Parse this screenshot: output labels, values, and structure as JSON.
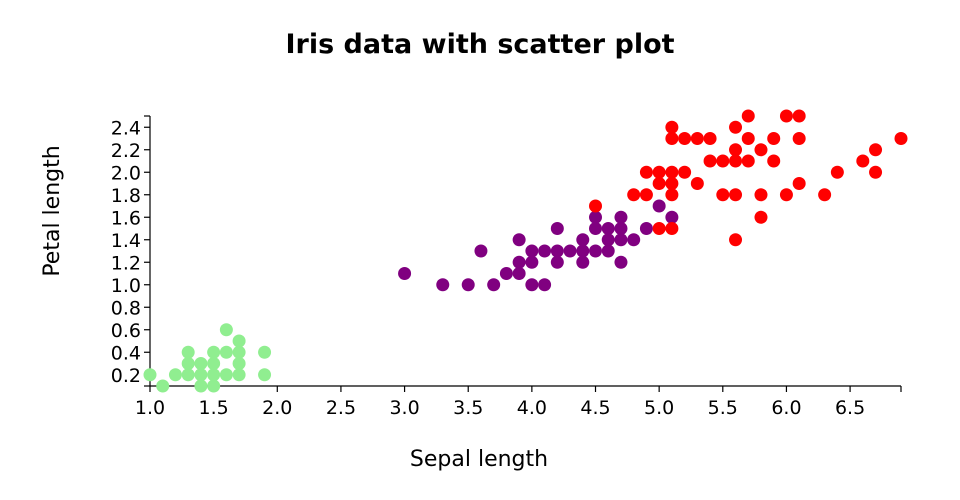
{
  "chart_data": {
    "type": "scatter",
    "title": "Iris data with scatter plot",
    "xlabel": "Sepal length",
    "ylabel": "Petal length",
    "xlim": [
      1.0,
      6.9
    ],
    "ylim": [
      0.1,
      2.5
    ],
    "x_ticks": [
      "1.0",
      "1.5",
      "2.0",
      "2.5",
      "3.0",
      "3.5",
      "4.0",
      "4.5",
      "5.0",
      "5.5",
      "6.0",
      "6.5"
    ],
    "y_ticks": [
      "0.2",
      "0.4",
      "0.6",
      "0.8",
      "1.0",
      "1.2",
      "1.4",
      "1.6",
      "1.8",
      "2.0",
      "2.2",
      "2.4"
    ],
    "grid": false,
    "legend": "none",
    "series": [
      {
        "color": "#90ee90",
        "points": [
          [
            1.0,
            0.2
          ],
          [
            1.1,
            0.1
          ],
          [
            1.2,
            0.2
          ],
          [
            1.3,
            0.2
          ],
          [
            1.3,
            0.3
          ],
          [
            1.3,
            0.4
          ],
          [
            1.4,
            0.1
          ],
          [
            1.4,
            0.2
          ],
          [
            1.4,
            0.3
          ],
          [
            1.5,
            0.1
          ],
          [
            1.5,
            0.2
          ],
          [
            1.5,
            0.3
          ],
          [
            1.5,
            0.4
          ],
          [
            1.6,
            0.2
          ],
          [
            1.6,
            0.4
          ],
          [
            1.6,
            0.6
          ],
          [
            1.7,
            0.2
          ],
          [
            1.7,
            0.3
          ],
          [
            1.7,
            0.4
          ],
          [
            1.7,
            0.5
          ],
          [
            1.9,
            0.2
          ],
          [
            1.9,
            0.4
          ]
        ]
      },
      {
        "color": "#800080",
        "points": [
          [
            3.0,
            1.1
          ],
          [
            3.3,
            1.0
          ],
          [
            3.5,
            1.0
          ],
          [
            3.6,
            1.3
          ],
          [
            3.7,
            1.0
          ],
          [
            3.8,
            1.1
          ],
          [
            3.9,
            1.1
          ],
          [
            3.9,
            1.2
          ],
          [
            3.9,
            1.4
          ],
          [
            4.0,
            1.0
          ],
          [
            4.0,
            1.2
          ],
          [
            4.0,
            1.3
          ],
          [
            4.1,
            1.0
          ],
          [
            4.1,
            1.3
          ],
          [
            4.2,
            1.2
          ],
          [
            4.2,
            1.3
          ],
          [
            4.2,
            1.5
          ],
          [
            4.3,
            1.3
          ],
          [
            4.4,
            1.2
          ],
          [
            4.4,
            1.3
          ],
          [
            4.4,
            1.4
          ],
          [
            4.5,
            1.3
          ],
          [
            4.5,
            1.5
          ],
          [
            4.5,
            1.6
          ],
          [
            4.6,
            1.3
          ],
          [
            4.6,
            1.4
          ],
          [
            4.6,
            1.5
          ],
          [
            4.7,
            1.2
          ],
          [
            4.7,
            1.4
          ],
          [
            4.7,
            1.5
          ],
          [
            4.7,
            1.6
          ],
          [
            4.8,
            1.4
          ],
          [
            4.9,
            1.5
          ],
          [
            5.0,
            1.7
          ],
          [
            5.1,
            1.6
          ]
        ]
      },
      {
        "color": "#ff0000",
        "points": [
          [
            4.5,
            1.7
          ],
          [
            4.8,
            1.8
          ],
          [
            4.9,
            1.8
          ],
          [
            4.9,
            2.0
          ],
          [
            5.0,
            1.5
          ],
          [
            5.0,
            1.9
          ],
          [
            5.0,
            2.0
          ],
          [
            5.1,
            1.5
          ],
          [
            5.1,
            1.8
          ],
          [
            5.1,
            1.9
          ],
          [
            5.1,
            2.0
          ],
          [
            5.1,
            2.3
          ],
          [
            5.1,
            2.4
          ],
          [
            5.2,
            2.0
          ],
          [
            5.2,
            2.3
          ],
          [
            5.3,
            1.9
          ],
          [
            5.3,
            2.3
          ],
          [
            5.4,
            2.1
          ],
          [
            5.4,
            2.3
          ],
          [
            5.5,
            1.8
          ],
          [
            5.5,
            2.1
          ],
          [
            5.6,
            1.4
          ],
          [
            5.6,
            1.8
          ],
          [
            5.6,
            2.1
          ],
          [
            5.6,
            2.2
          ],
          [
            5.6,
            2.4
          ],
          [
            5.7,
            2.1
          ],
          [
            5.7,
            2.3
          ],
          [
            5.7,
            2.5
          ],
          [
            5.8,
            1.6
          ],
          [
            5.8,
            1.8
          ],
          [
            5.8,
            2.2
          ],
          [
            5.9,
            2.1
          ],
          [
            5.9,
            2.3
          ],
          [
            6.0,
            1.8
          ],
          [
            6.0,
            2.5
          ],
          [
            6.1,
            1.9
          ],
          [
            6.1,
            2.3
          ],
          [
            6.1,
            2.5
          ],
          [
            6.3,
            1.8
          ],
          [
            6.4,
            2.0
          ],
          [
            6.6,
            2.1
          ],
          [
            6.7,
            2.0
          ],
          [
            6.7,
            2.2
          ],
          [
            6.9,
            2.3
          ]
        ]
      }
    ]
  }
}
